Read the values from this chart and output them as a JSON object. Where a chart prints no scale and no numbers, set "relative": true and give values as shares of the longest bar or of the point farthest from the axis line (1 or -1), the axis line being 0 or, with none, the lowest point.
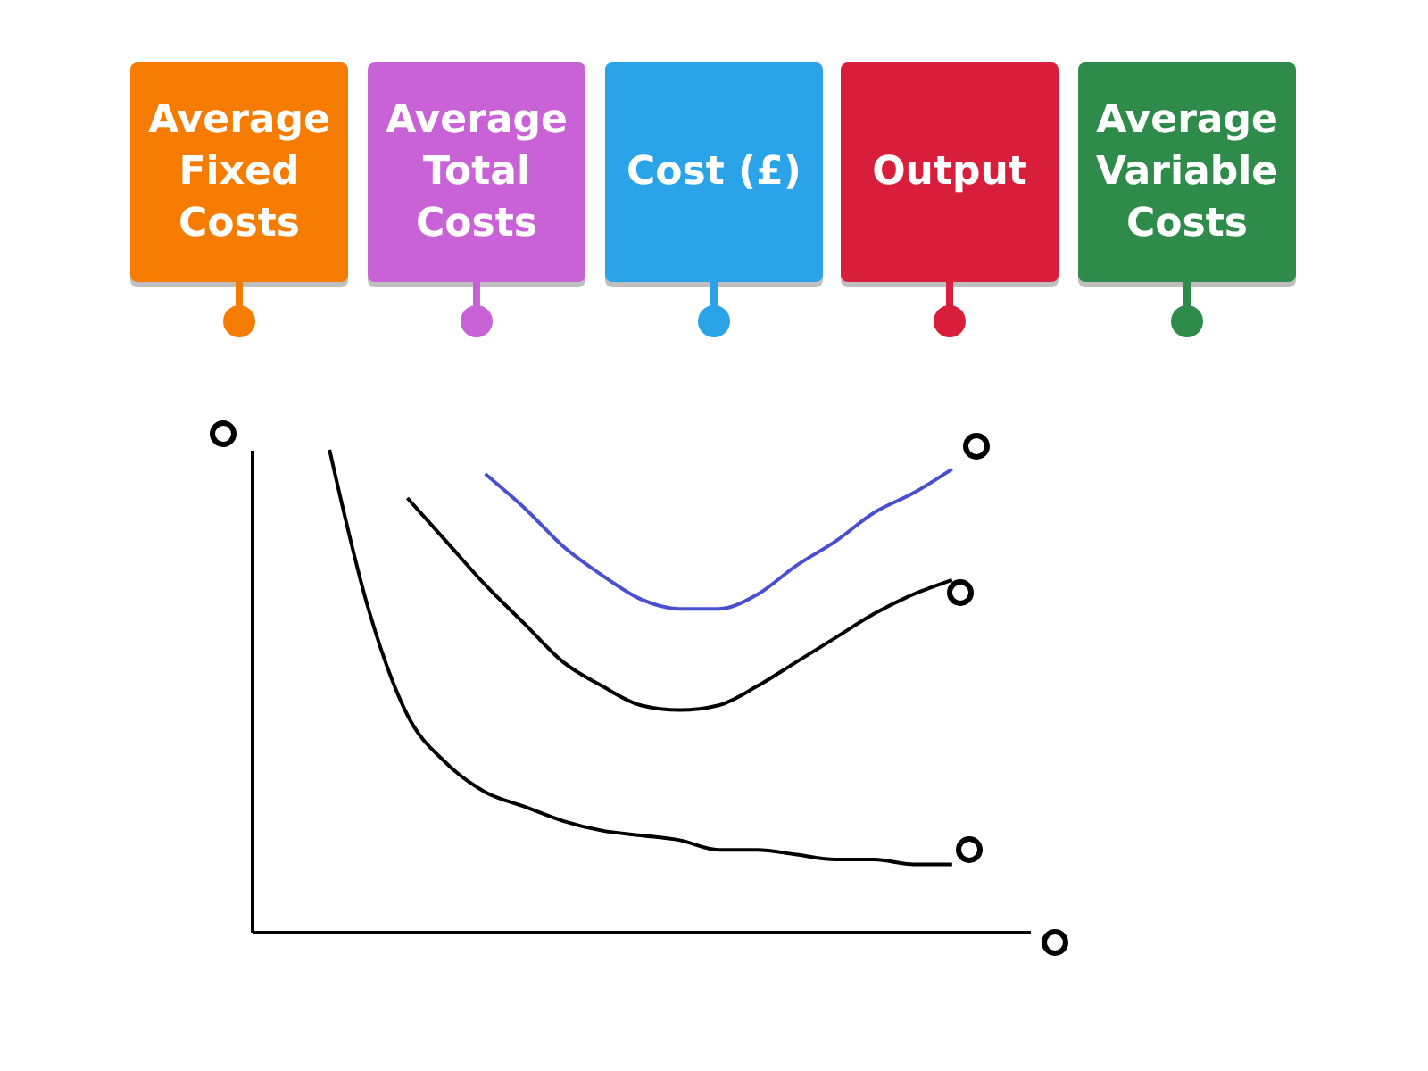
{
  "chart_data": {
    "type": "line",
    "relative": true,
    "annotations": [
      "Average Fixed Costs",
      "Average Total Costs",
      "Cost (£)",
      "Output",
      "Average Variable Costs"
    ],
    "categories": [
      null,
      null,
      null,
      null,
      null,
      null,
      null,
      null,
      null,
      null,
      null,
      null,
      null,
      null,
      null,
      null,
      null,
      null,
      null,
      null,
      null
    ],
    "series": [
      {
        "color": "#000000",
        "values": [
          null,
          null,
          1,
          0.67,
          0.45,
          0.35,
          0.29,
          0.26,
          0.23,
          0.21,
          0.2,
          0.19,
          0.17,
          0.17,
          0.16,
          0.15,
          0.15,
          0.14,
          0.14,
          null,
          null
        ]
      },
      {
        "color": "#000000",
        "values": [
          null,
          null,
          null,
          null,
          0.9,
          0.81,
          0.72,
          0.64,
          0.56,
          0.51,
          0.47,
          0.46,
          0.47,
          0.51,
          0.56,
          0.61,
          0.66,
          0.7,
          0.73,
          null,
          null
        ]
      },
      {
        "color": "#4a4fd0",
        "values": [
          null,
          null,
          null,
          null,
          null,
          null,
          0.95,
          0.88,
          0.8,
          0.74,
          0.69,
          0.67,
          0.67,
          0.7,
          0.76,
          0.81,
          0.87,
          0.91,
          0.96,
          null,
          null
        ]
      }
    ],
    "grid": false
  }
}
